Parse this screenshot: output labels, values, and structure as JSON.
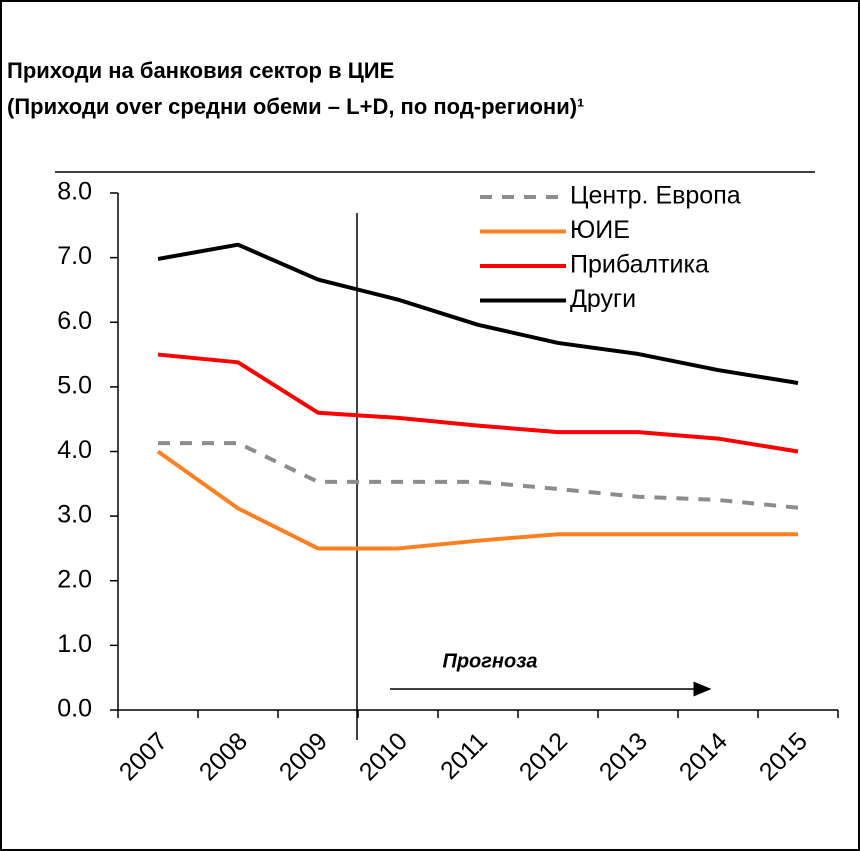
{
  "chart_data": {
    "type": "line",
    "title": "Приходи на банковия сектор в ЦИЕ",
    "subtitle": "(Приходи over средни обеми – L+D, по под-региони)¹",
    "annotation": "Прогноза",
    "categories": [
      "2007",
      "2008",
      "2009",
      "2010",
      "2011",
      "2012",
      "2013",
      "2014",
      "2015"
    ],
    "series": [
      {
        "name": "Центр. Европа",
        "color": "#8c8c8c",
        "dashed": true,
        "values": [
          4.13,
          4.13,
          3.53,
          3.53,
          3.53,
          3.42,
          3.3,
          3.25,
          3.13
        ]
      },
      {
        "name": "ЮИЕ",
        "color": "#ff8020",
        "values": [
          4.0,
          3.12,
          2.5,
          2.5,
          2.62,
          2.72,
          2.72,
          2.72,
          2.72
        ]
      },
      {
        "name": "Прибалтика",
        "color": "#ff0000",
        "values": [
          5.5,
          5.38,
          4.6,
          4.52,
          4.4,
          4.3,
          4.3,
          4.2,
          4.0
        ]
      },
      {
        "name": "Други",
        "color": "#000000",
        "values": [
          6.98,
          7.2,
          6.66,
          6.35,
          5.96,
          5.68,
          5.51,
          5.26,
          5.06
        ]
      }
    ],
    "ylim": [
      0,
      8
    ],
    "yticks": [
      {
        "value": 0,
        "label": "0.0"
      },
      {
        "value": 1,
        "label": "1.0"
      },
      {
        "value": 2,
        "label": "2.0"
      },
      {
        "value": 3,
        "label": "3.0"
      },
      {
        "value": 4,
        "label": "4.0"
      },
      {
        "value": 5,
        "label": "5.0"
      },
      {
        "value": 6,
        "label": "6.0"
      },
      {
        "value": 7,
        "label": "7.0"
      },
      {
        "value": 8,
        "label": "8.0"
      }
    ],
    "legend": "top-right"
  }
}
